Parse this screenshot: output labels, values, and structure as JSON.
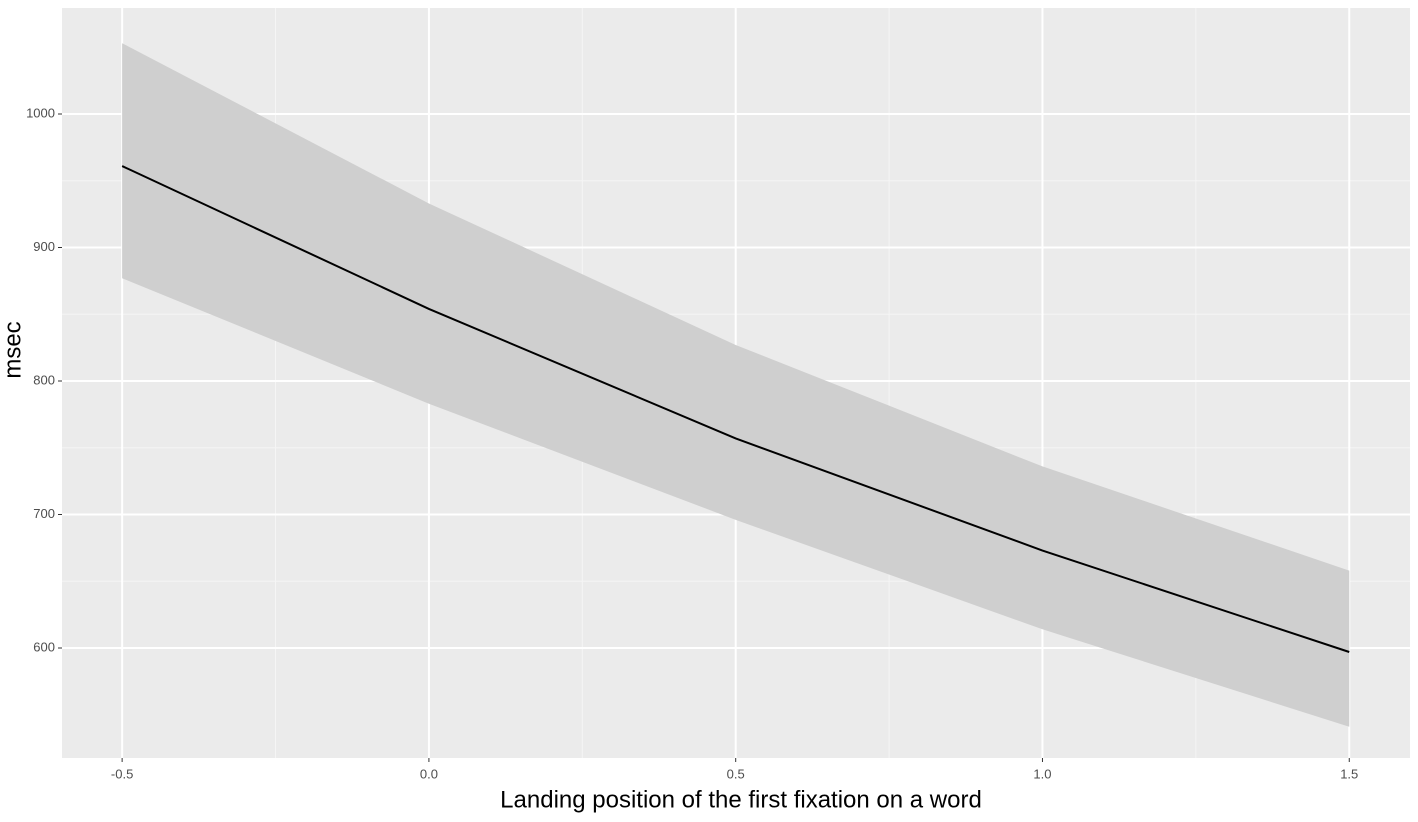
{
  "chart_data": {
    "type": "line",
    "x_label": "Landing position of the first fixation on a word",
    "y_label": "msec",
    "x": [
      -0.5,
      0,
      0.5,
      1,
      1.5
    ],
    "series": [
      {
        "color": "#000000",
        "values": [
          961,
          854,
          757,
          673,
          597
        ],
        "lower": [
          877,
          783,
          696,
          614,
          541
        ],
        "upper": [
          1053,
          933,
          827,
          736,
          658
        ],
        "band_color": "#cfcfcf"
      }
    ],
    "xlim": [
      -0.598,
      1.599
    ],
    "ylim": [
      517.6,
      1079.4
    ],
    "xticks": [
      -0.5,
      {
        "value": 0,
        "label": "0.0"
      },
      0.5,
      {
        "value": 1,
        "label": "1.0"
      },
      1.5
    ],
    "yticks": [
      600,
      700,
      800,
      900,
      1000
    ],
    "grid": true
  }
}
